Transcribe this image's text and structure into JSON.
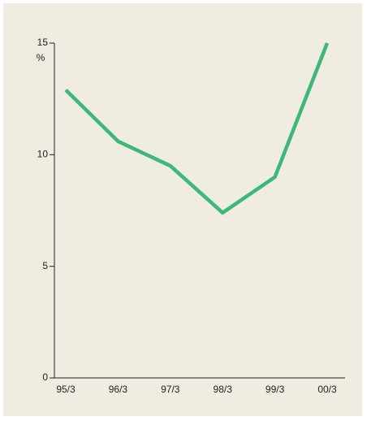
{
  "chart_data": {
    "type": "line",
    "ylabel": "%",
    "categories": [
      "95/3",
      "96/3",
      "97/3",
      "98/3",
      "99/3",
      "00/3"
    ],
    "series": [
      {
        "name": null,
        "color": "#3cb878",
        "values": [
          12.9,
          10.6,
          9.5,
          7.4,
          9.0,
          15.0
        ]
      }
    ],
    "ylim": [
      0,
      15
    ],
    "yticks": [
      0,
      5,
      10,
      15
    ],
    "grid": false
  }
}
